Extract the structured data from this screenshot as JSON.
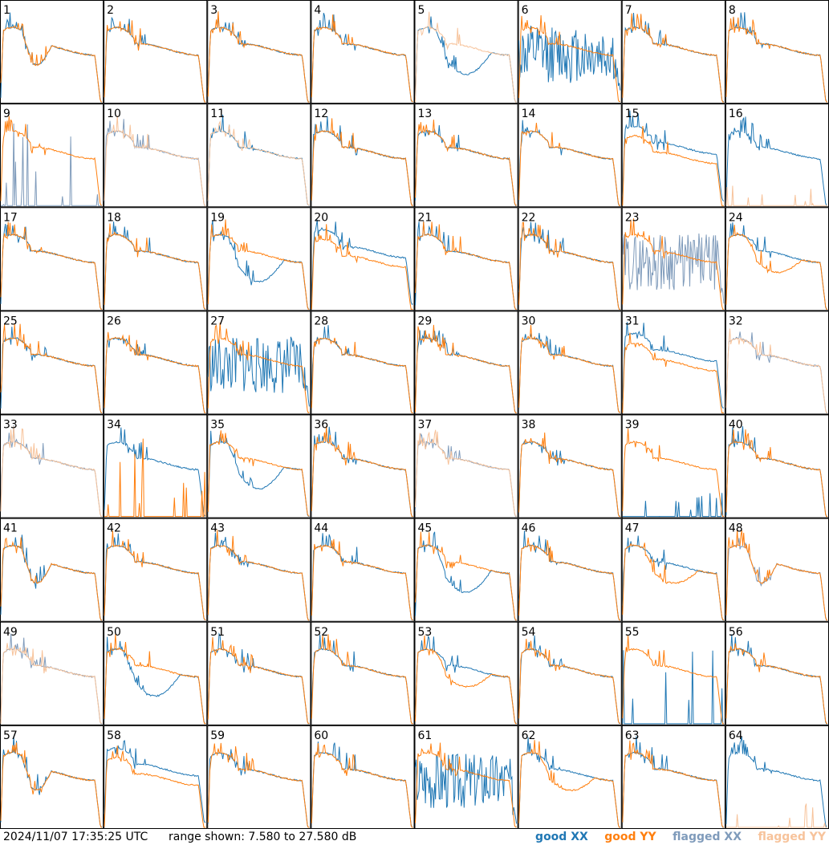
{
  "footer": {
    "timestamp": "2024/11/07 17:35:25 UTC",
    "range_text": "range shown: 7.580 to 27.580 dB"
  },
  "legend": [
    {
      "label": "good XX",
      "color": "#1f77b4"
    },
    {
      "label": "good YY",
      "color": "#ff7f0e"
    },
    {
      "label": "flagged XX",
      "color": "#7f9bbb"
    },
    {
      "label": "flagged YY",
      "color": "#f7c39b"
    }
  ],
  "chart_data": {
    "type": "line",
    "title": "",
    "ylim": [
      7.58,
      27.58
    ],
    "grid": false,
    "legend_placement": "bottom-right",
    "panels": [
      {
        "id": "1",
        "xx": "good",
        "yy": "good",
        "shape": "dip"
      },
      {
        "id": "2",
        "xx": "good",
        "yy": "good",
        "shape": "normal"
      },
      {
        "id": "3",
        "xx": "good",
        "yy": "good",
        "shape": "normal"
      },
      {
        "id": "4",
        "xx": "good",
        "yy": "good",
        "shape": "normal"
      },
      {
        "id": "5",
        "xx": "good",
        "yy": "flagged",
        "shape": "xx_dip"
      },
      {
        "id": "6",
        "xx": "good",
        "yy": "good",
        "shape": "xx_noisy"
      },
      {
        "id": "7",
        "xx": "good",
        "yy": "good",
        "shape": "normal"
      },
      {
        "id": "8",
        "xx": "good",
        "yy": "good",
        "shape": "normal"
      },
      {
        "id": "9",
        "xx": "flagged",
        "yy": "good",
        "shape": "xx_dead"
      },
      {
        "id": "10",
        "xx": "flagged",
        "yy": "flagged",
        "shape": "flagged"
      },
      {
        "id": "11",
        "xx": "good",
        "yy": "flagged",
        "shape": "flagged"
      },
      {
        "id": "12",
        "xx": "good",
        "yy": "good",
        "shape": "normal"
      },
      {
        "id": "13",
        "xx": "good",
        "yy": "good",
        "shape": "normal"
      },
      {
        "id": "14",
        "xx": "good",
        "yy": "good",
        "shape": "normal"
      },
      {
        "id": "15",
        "xx": "good",
        "yy": "good",
        "shape": "split"
      },
      {
        "id": "16",
        "xx": "good",
        "yy": "flagged",
        "shape": "xx_only"
      },
      {
        "id": "17",
        "xx": "good",
        "yy": "good",
        "shape": "normal"
      },
      {
        "id": "18",
        "xx": "good",
        "yy": "good",
        "shape": "normal"
      },
      {
        "id": "19",
        "xx": "good",
        "yy": "good",
        "shape": "xx_dip"
      },
      {
        "id": "20",
        "xx": "good",
        "yy": "good",
        "shape": "split"
      },
      {
        "id": "21",
        "xx": "good",
        "yy": "good",
        "shape": "normal"
      },
      {
        "id": "22",
        "xx": "good",
        "yy": "good",
        "shape": "normal"
      },
      {
        "id": "23",
        "xx": "flagged",
        "yy": "good",
        "shape": "xx_noisy"
      },
      {
        "id": "24",
        "xx": "good",
        "yy": "good",
        "shape": "yy_dip"
      },
      {
        "id": "25",
        "xx": "good",
        "yy": "good",
        "shape": "normal"
      },
      {
        "id": "26",
        "xx": "good",
        "yy": "good",
        "shape": "normal"
      },
      {
        "id": "27",
        "xx": "good",
        "yy": "good",
        "shape": "xx_noisy"
      },
      {
        "id": "28",
        "xx": "good",
        "yy": "good",
        "shape": "normal"
      },
      {
        "id": "29",
        "xx": "good",
        "yy": "good",
        "shape": "normal"
      },
      {
        "id": "30",
        "xx": "good",
        "yy": "good",
        "shape": "normal"
      },
      {
        "id": "31",
        "xx": "good",
        "yy": "good",
        "shape": "split"
      },
      {
        "id": "32",
        "xx": "flagged",
        "yy": "flagged",
        "shape": "yy_only_flag"
      },
      {
        "id": "33",
        "xx": "flagged",
        "yy": "flagged",
        "shape": "flagged"
      },
      {
        "id": "34",
        "xx": "good",
        "yy": "good",
        "shape": "yy_dead"
      },
      {
        "id": "35",
        "xx": "good",
        "yy": "good",
        "shape": "xx_dip"
      },
      {
        "id": "36",
        "xx": "good",
        "yy": "good",
        "shape": "normal"
      },
      {
        "id": "37",
        "xx": "flagged",
        "yy": "flagged",
        "shape": "flagged"
      },
      {
        "id": "38",
        "xx": "good",
        "yy": "good",
        "shape": "normal"
      },
      {
        "id": "39",
        "xx": "good",
        "yy": "good",
        "shape": "yy_only"
      },
      {
        "id": "40",
        "xx": "good",
        "yy": "good",
        "shape": "normal"
      },
      {
        "id": "41",
        "xx": "good",
        "yy": "good",
        "shape": "dip"
      },
      {
        "id": "42",
        "xx": "good",
        "yy": "good",
        "shape": "normal"
      },
      {
        "id": "43",
        "xx": "good",
        "yy": "good",
        "shape": "normal"
      },
      {
        "id": "44",
        "xx": "good",
        "yy": "good",
        "shape": "normal"
      },
      {
        "id": "45",
        "xx": "good",
        "yy": "good",
        "shape": "xx_dip"
      },
      {
        "id": "46",
        "xx": "good",
        "yy": "good",
        "shape": "normal"
      },
      {
        "id": "47",
        "xx": "good",
        "yy": "good",
        "shape": "yy_dip"
      },
      {
        "id": "48",
        "xx": "flagged",
        "yy": "good",
        "shape": "dip"
      },
      {
        "id": "49",
        "xx": "flagged",
        "yy": "flagged",
        "shape": "flagged"
      },
      {
        "id": "50",
        "xx": "good",
        "yy": "good",
        "shape": "xx_dip"
      },
      {
        "id": "51",
        "xx": "good",
        "yy": "good",
        "shape": "normal"
      },
      {
        "id": "52",
        "xx": "good",
        "yy": "good",
        "shape": "normal"
      },
      {
        "id": "53",
        "xx": "good",
        "yy": "good",
        "shape": "yy_dip"
      },
      {
        "id": "54",
        "xx": "good",
        "yy": "good",
        "shape": "normal"
      },
      {
        "id": "55",
        "xx": "good",
        "yy": "good",
        "shape": "xx_dead"
      },
      {
        "id": "56",
        "xx": "good",
        "yy": "good",
        "shape": "normal"
      },
      {
        "id": "57",
        "xx": "good",
        "yy": "good",
        "shape": "dip"
      },
      {
        "id": "58",
        "xx": "good",
        "yy": "good",
        "shape": "split"
      },
      {
        "id": "59",
        "xx": "good",
        "yy": "good",
        "shape": "normal"
      },
      {
        "id": "60",
        "xx": "good",
        "yy": "good",
        "shape": "normal"
      },
      {
        "id": "61",
        "xx": "good",
        "yy": "good",
        "shape": "xx_noisy"
      },
      {
        "id": "62",
        "xx": "good",
        "yy": "good",
        "shape": "yy_dip"
      },
      {
        "id": "63",
        "xx": "good",
        "yy": "good",
        "shape": "normal"
      },
      {
        "id": "64",
        "xx": "good",
        "yy": "flagged",
        "shape": "xx_only"
      }
    ]
  }
}
